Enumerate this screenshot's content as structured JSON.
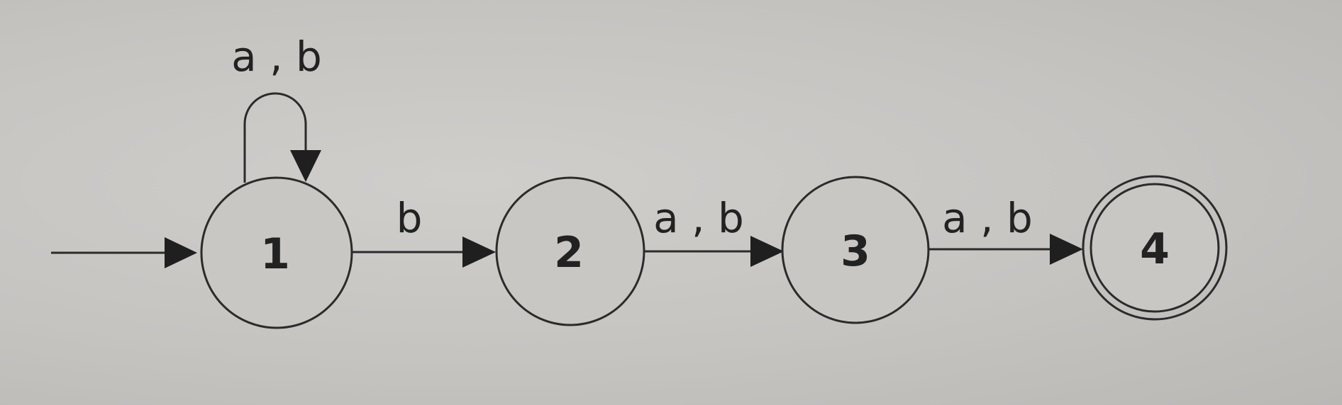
{
  "diagram": {
    "type": "finite-automaton",
    "states": [
      {
        "id": "s1",
        "label": "1",
        "start": true,
        "accepting": false
      },
      {
        "id": "s2",
        "label": "2",
        "start": false,
        "accepting": false
      },
      {
        "id": "s3",
        "label": "3",
        "start": false,
        "accepting": false
      },
      {
        "id": "s4",
        "label": "4",
        "start": false,
        "accepting": true
      }
    ],
    "transitions": [
      {
        "from": "1",
        "to": "1",
        "label": "a , b"
      },
      {
        "from": "1",
        "to": "2",
        "label": "b"
      },
      {
        "from": "2",
        "to": "3",
        "label": "a , b"
      },
      {
        "from": "3",
        "to": "4",
        "label": "a , b"
      }
    ]
  }
}
